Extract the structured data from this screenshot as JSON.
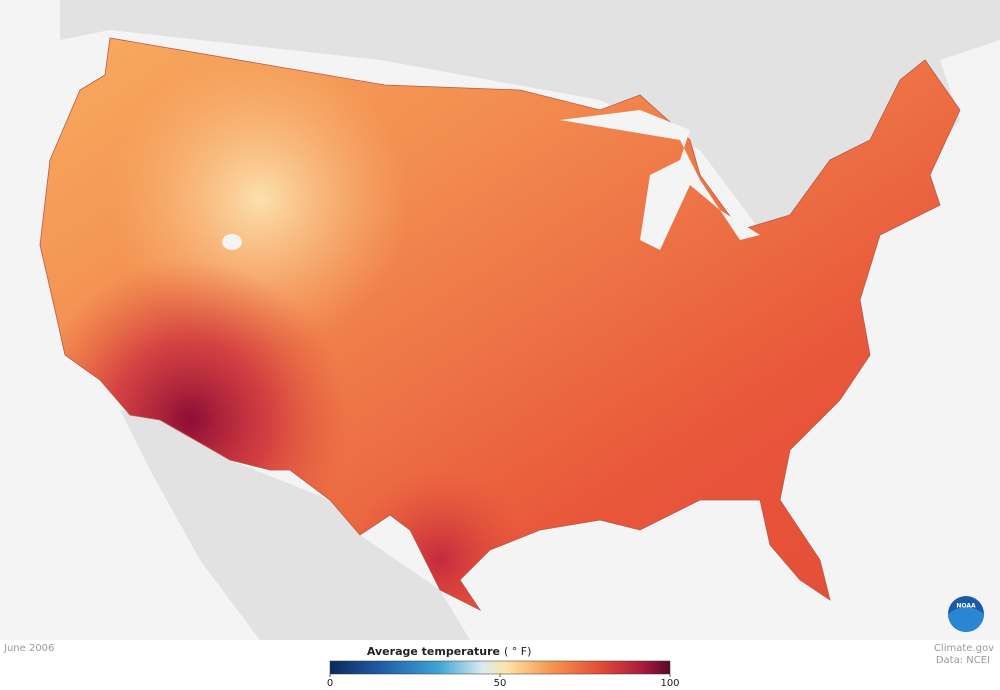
{
  "date": "June 2006",
  "legend": {
    "title": "Average temperature",
    "unit": "( ° F)",
    "lim": [
      0,
      100
    ],
    "ticks": [
      0,
      50,
      100
    ]
  },
  "credit": {
    "site": "Climate.gov",
    "source": "Data: NCEI"
  },
  "logo": "NOAA"
}
